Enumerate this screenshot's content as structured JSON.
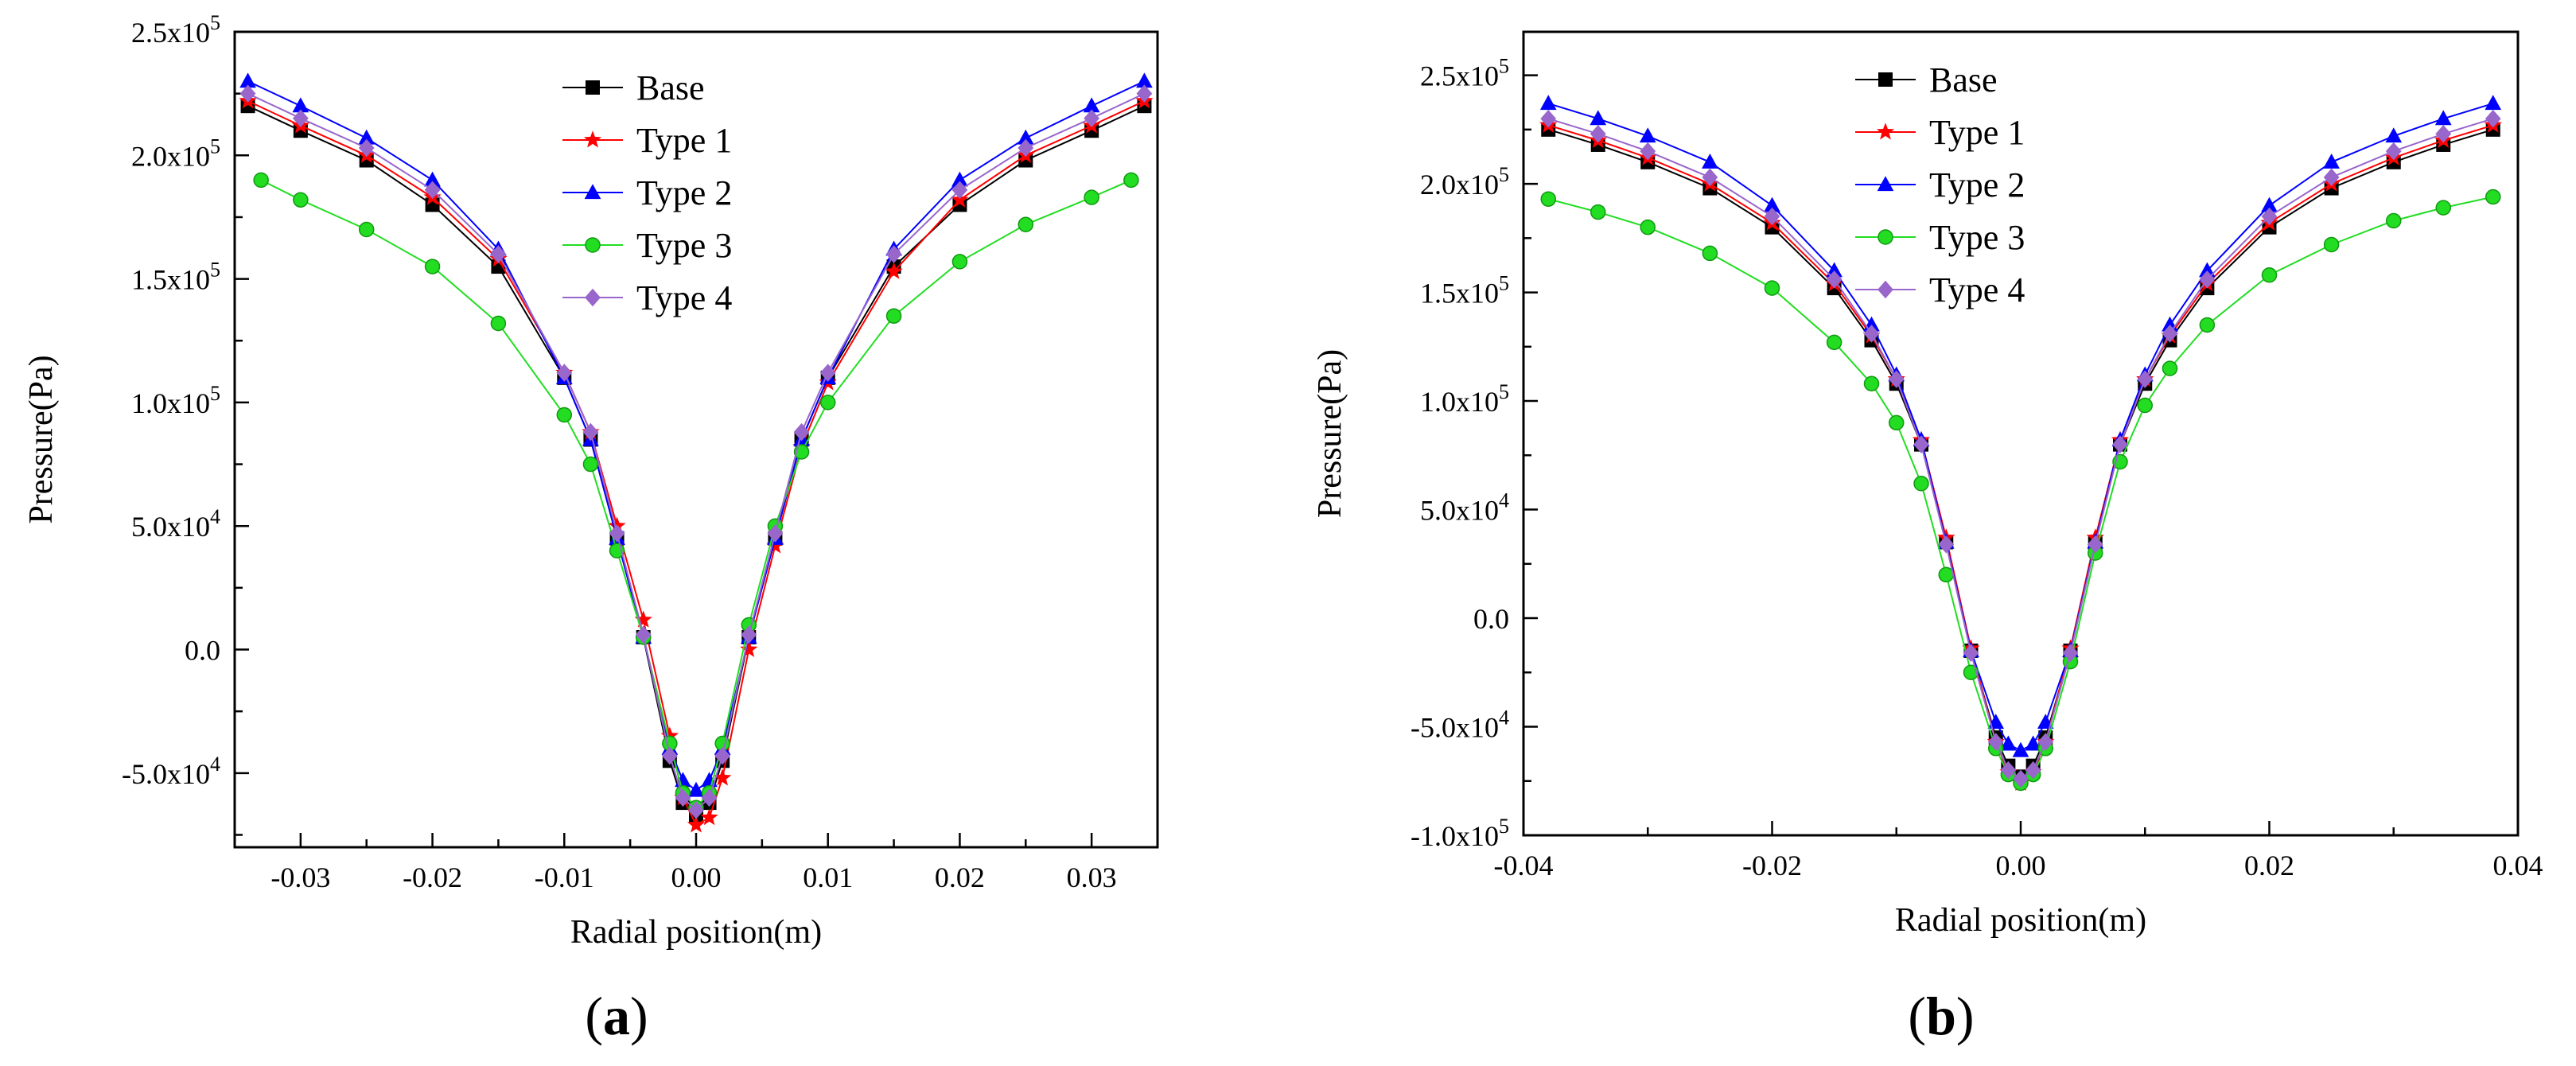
{
  "chart_data": [
    {
      "type": "line",
      "panel_label": "a",
      "xlabel": "Radial position(m)",
      "ylabel": "Pressure(Pa)",
      "xlim": [
        -0.035,
        0.035
      ],
      "ylim": [
        -80000,
        250000
      ],
      "x_ticks": [
        -0.03,
        -0.02,
        -0.01,
        0.0,
        0.01,
        0.02,
        0.03
      ],
      "x_tick_labels": [
        "-0.03",
        "-0.02",
        "-0.01",
        "0.00",
        "0.01",
        "0.02",
        "0.03"
      ],
      "y_ticks": [
        -50000,
        0,
        50000,
        100000,
        150000,
        200000,
        250000
      ],
      "y_tick_labels": [
        {
          "mantissa": "-5.0x10",
          "exp": "4"
        },
        {
          "mantissa": "0.0",
          "exp": ""
        },
        {
          "mantissa": "5.0x10",
          "exp": "4"
        },
        {
          "mantissa": "1.0x10",
          "exp": "5"
        },
        {
          "mantissa": "1.5x10",
          "exp": "5"
        },
        {
          "mantissa": "2.0x10",
          "exp": "5"
        },
        {
          "mantissa": "2.5x10",
          "exp": "5"
        }
      ],
      "legend_position": "top-center",
      "series": [
        {
          "name": "Base",
          "color": "#000000",
          "marker": "square",
          "x": [
            -0.034,
            -0.03,
            -0.025,
            -0.02,
            -0.015,
            -0.01,
            -0.008,
            -0.006,
            -0.004,
            -0.002,
            -0.001,
            0.0,
            0.001,
            0.002,
            0.004,
            0.006,
            0.008,
            0.01,
            0.015,
            0.02,
            0.025,
            0.03,
            0.034
          ],
          "y": [
            220000,
            210000,
            198000,
            180000,
            155000,
            110000,
            85000,
            45000,
            5000,
            -45000,
            -62000,
            -67000,
            -62000,
            -45000,
            5000,
            45000,
            85000,
            110000,
            155000,
            180000,
            198000,
            210000,
            220000
          ]
        },
        {
          "name": "Type 1",
          "color": "#ff0000",
          "marker": "star",
          "x": [
            -0.034,
            -0.03,
            -0.025,
            -0.02,
            -0.015,
            -0.01,
            -0.008,
            -0.006,
            -0.004,
            -0.002,
            -0.001,
            0.0,
            0.001,
            0.002,
            0.004,
            0.006,
            0.008,
            0.01,
            0.015,
            0.02,
            0.025,
            0.03,
            0.034
          ],
          "y": [
            222000,
            212000,
            200000,
            183000,
            158000,
            112000,
            88000,
            50000,
            12000,
            -35000,
            -60000,
            -71000,
            -68000,
            -52000,
            0,
            42000,
            82000,
            108000,
            153000,
            182000,
            200000,
            212000,
            222000
          ]
        },
        {
          "name": "Type 2",
          "color": "#0000ff",
          "marker": "triangle",
          "x": [
            -0.034,
            -0.03,
            -0.025,
            -0.02,
            -0.015,
            -0.01,
            -0.008,
            -0.006,
            -0.004,
            -0.002,
            -0.001,
            0.0,
            0.001,
            0.002,
            0.004,
            0.006,
            0.008,
            0.01,
            0.015,
            0.02,
            0.025,
            0.03,
            0.034
          ],
          "y": [
            230000,
            220000,
            207000,
            190000,
            162000,
            110000,
            85000,
            45000,
            5000,
            -40000,
            -53000,
            -57000,
            -53000,
            -40000,
            5000,
            45000,
            85000,
            110000,
            162000,
            190000,
            207000,
            220000,
            230000
          ]
        },
        {
          "name": "Type 3",
          "color": "#22dd22",
          "marker": "circle",
          "x": [
            -0.033,
            -0.03,
            -0.025,
            -0.02,
            -0.015,
            -0.01,
            -0.008,
            -0.006,
            -0.004,
            -0.002,
            -0.001,
            0.0,
            0.001,
            0.002,
            0.004,
            0.006,
            0.008,
            0.01,
            0.015,
            0.02,
            0.025,
            0.03,
            0.033
          ],
          "y": [
            190000,
            182000,
            170000,
            155000,
            132000,
            95000,
            75000,
            40000,
            5000,
            -38000,
            -58000,
            -64000,
            -58000,
            -38000,
            10000,
            50000,
            80000,
            100000,
            135000,
            157000,
            172000,
            183000,
            190000
          ]
        },
        {
          "name": "Type 4",
          "color": "#9966cc",
          "marker": "diamond",
          "x": [
            -0.034,
            -0.03,
            -0.025,
            -0.02,
            -0.015,
            -0.01,
            -0.008,
            -0.006,
            -0.004,
            -0.002,
            -0.001,
            0.0,
            0.001,
            0.002,
            0.004,
            0.006,
            0.008,
            0.01,
            0.015,
            0.02,
            0.025,
            0.03,
            0.034
          ],
          "y": [
            225000,
            215000,
            203000,
            186000,
            160000,
            112000,
            88000,
            47000,
            6000,
            -43000,
            -60000,
            -65000,
            -60000,
            -43000,
            6000,
            47000,
            88000,
            112000,
            160000,
            186000,
            203000,
            215000,
            225000
          ]
        }
      ]
    },
    {
      "type": "line",
      "panel_label": "b",
      "xlabel": "Radial position(m)",
      "ylabel": "Pressure(Pa)",
      "xlim": [
        -0.04,
        0.04
      ],
      "ylim": [
        -100000,
        270000
      ],
      "x_ticks": [
        -0.04,
        -0.02,
        0.0,
        0.02,
        0.04
      ],
      "x_tick_labels": [
        "-0.04",
        "-0.02",
        "0.00",
        "0.02",
        "0.04"
      ],
      "y_ticks": [
        -100000,
        -50000,
        0,
        50000,
        100000,
        150000,
        200000,
        250000
      ],
      "y_tick_labels": [
        {
          "mantissa": "-1.0x10",
          "exp": "5"
        },
        {
          "mantissa": "-5.0x10",
          "exp": "4"
        },
        {
          "mantissa": "0.0",
          "exp": ""
        },
        {
          "mantissa": "5.0x10",
          "exp": "4"
        },
        {
          "mantissa": "1.0x10",
          "exp": "5"
        },
        {
          "mantissa": "1.5x10",
          "exp": "5"
        },
        {
          "mantissa": "2.0x10",
          "exp": "5"
        },
        {
          "mantissa": "2.5x10",
          "exp": "5"
        }
      ],
      "legend_position": "top-center",
      "series": [
        {
          "name": "Base",
          "color": "#000000",
          "marker": "square",
          "x": [
            -0.038,
            -0.034,
            -0.03,
            -0.025,
            -0.02,
            -0.015,
            -0.012,
            -0.01,
            -0.008,
            -0.006,
            -0.004,
            -0.002,
            -0.001,
            0.0,
            0.001,
            0.002,
            0.004,
            0.006,
            0.008,
            0.01,
            0.012,
            0.015,
            0.02,
            0.025,
            0.03,
            0.034,
            0.038
          ],
          "y": [
            225000,
            218000,
            210000,
            198000,
            180000,
            152000,
            128000,
            108000,
            80000,
            35000,
            -15000,
            -55000,
            -68000,
            -73000,
            -68000,
            -55000,
            -15000,
            35000,
            80000,
            108000,
            128000,
            152000,
            180000,
            198000,
            210000,
            218000,
            225000
          ]
        },
        {
          "name": "Type 1",
          "color": "#ff0000",
          "marker": "star",
          "x": [
            -0.038,
            -0.034,
            -0.03,
            -0.025,
            -0.02,
            -0.015,
            -0.012,
            -0.01,
            -0.008,
            -0.006,
            -0.004,
            -0.002,
            -0.001,
            0.0,
            0.001,
            0.002,
            0.004,
            0.006,
            0.008,
            0.01,
            0.012,
            0.015,
            0.02,
            0.025,
            0.03,
            0.034,
            0.038
          ],
          "y": [
            227000,
            220000,
            212000,
            200000,
            182000,
            154000,
            130000,
            110000,
            82000,
            37000,
            -14000,
            -57000,
            -71000,
            -76000,
            -71000,
            -57000,
            -14000,
            37000,
            82000,
            110000,
            130000,
            154000,
            182000,
            200000,
            212000,
            220000,
            227000
          ]
        },
        {
          "name": "Type 2",
          "color": "#0000ff",
          "marker": "triangle",
          "x": [
            -0.038,
            -0.034,
            -0.03,
            -0.025,
            -0.02,
            -0.015,
            -0.012,
            -0.01,
            -0.008,
            -0.006,
            -0.004,
            -0.002,
            -0.001,
            0.0,
            0.001,
            0.002,
            0.004,
            0.006,
            0.008,
            0.01,
            0.012,
            0.015,
            0.02,
            0.025,
            0.03,
            0.034,
            0.038
          ],
          "y": [
            237000,
            230000,
            222000,
            210000,
            190000,
            160000,
            135000,
            112000,
            82000,
            35000,
            -15000,
            -48000,
            -58000,
            -61000,
            -58000,
            -48000,
            -15000,
            35000,
            82000,
            112000,
            135000,
            160000,
            190000,
            210000,
            222000,
            230000,
            237000
          ]
        },
        {
          "name": "Type 3",
          "color": "#22dd22",
          "marker": "circle",
          "x": [
            -0.038,
            -0.034,
            -0.03,
            -0.025,
            -0.02,
            -0.015,
            -0.012,
            -0.01,
            -0.008,
            -0.006,
            -0.004,
            -0.002,
            -0.001,
            0.0,
            0.001,
            0.002,
            0.004,
            0.006,
            0.008,
            0.01,
            0.012,
            0.015,
            0.02,
            0.025,
            0.03,
            0.034,
            0.038
          ],
          "y": [
            193000,
            187000,
            180000,
            168000,
            152000,
            127000,
            108000,
            90000,
            62000,
            20000,
            -25000,
            -60000,
            -72000,
            -76000,
            -72000,
            -60000,
            -20000,
            30000,
            72000,
            98000,
            115000,
            135000,
            158000,
            172000,
            183000,
            189000,
            194000
          ]
        },
        {
          "name": "Type 4",
          "color": "#9966cc",
          "marker": "diamond",
          "x": [
            -0.038,
            -0.034,
            -0.03,
            -0.025,
            -0.02,
            -0.015,
            -0.012,
            -0.01,
            -0.008,
            -0.006,
            -0.004,
            -0.002,
            -0.001,
            0.0,
            0.001,
            0.002,
            0.004,
            0.006,
            0.008,
            0.01,
            0.012,
            0.015,
            0.02,
            0.025,
            0.03,
            0.034,
            0.038
          ],
          "y": [
            230000,
            223000,
            215000,
            203000,
            185000,
            156000,
            131000,
            110000,
            80000,
            34000,
            -16000,
            -57000,
            -70000,
            -74000,
            -70000,
            -57000,
            -16000,
            34000,
            80000,
            110000,
            131000,
            156000,
            185000,
            203000,
            215000,
            223000,
            230000
          ]
        }
      ]
    }
  ]
}
